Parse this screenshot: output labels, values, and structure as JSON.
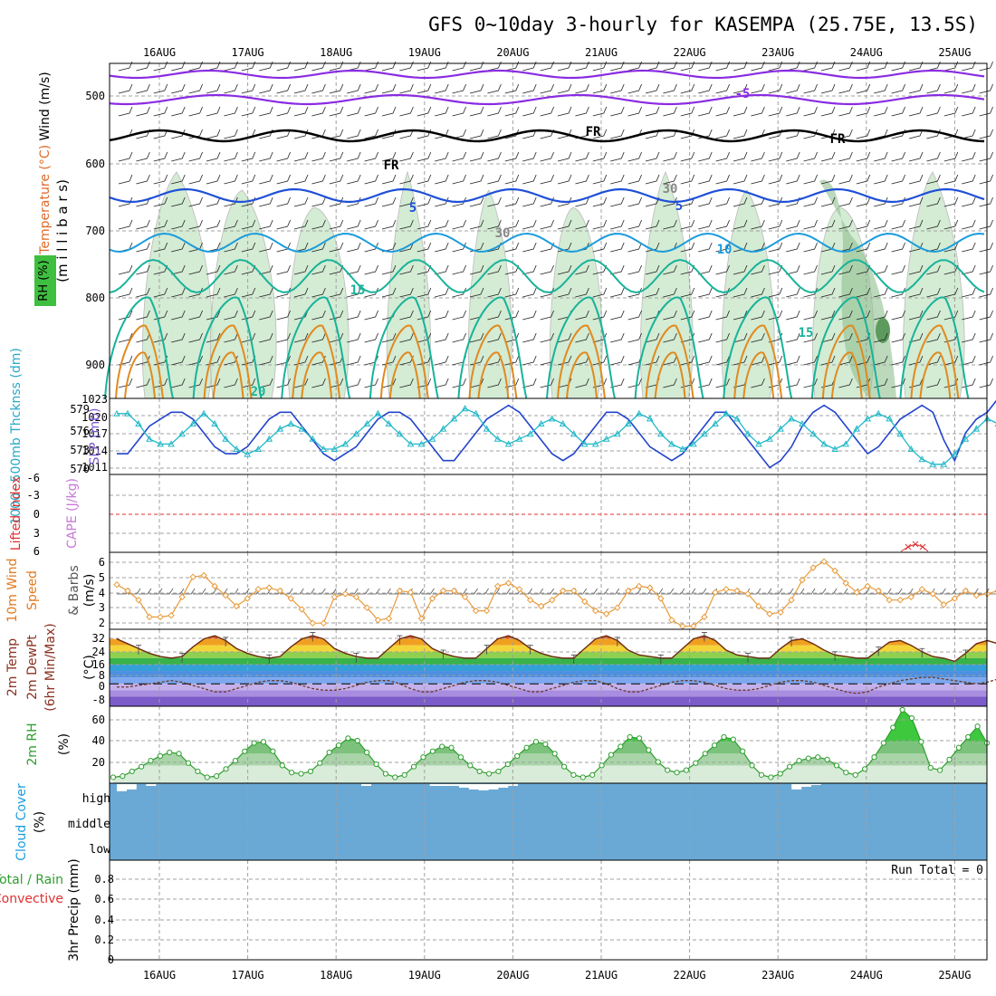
{
  "title": "GFS 0~10day 3-hourly for KASEMPA (25.75E, 13.5S)",
  "date_labels": [
    "16AUG",
    "17AUG",
    "18AUG",
    "19AUG",
    "20AUG",
    "21AUG",
    "22AUG",
    "23AUG",
    "24AUG",
    "25AUG"
  ],
  "panels": {
    "upper_air": {
      "ylabel": "(millibars)",
      "ylabel_chars": "(m i l l i b a r s)",
      "side_wind": "Wind (m/s)",
      "side_temp": "Temperature (°C)",
      "side_rh": "RH (%)",
      "pressure_ticks": [
        "500",
        "600",
        "700",
        "800",
        "900"
      ],
      "contour_labels": [
        "-5",
        "FR",
        "FR",
        "FR",
        "5",
        "5",
        "10",
        "15",
        "15",
        "20",
        "30",
        "30"
      ]
    },
    "thickness_slp": {
      "ylabel_left": "1000~500mb Thcknss (dm)",
      "ylabel_right": "SLP (mb)",
      "left_ticks": [
        "579",
        "576",
        "573",
        "570"
      ],
      "right_ticks": [
        "1023",
        "1020",
        "1017",
        "1014",
        "1011"
      ]
    },
    "stability": {
      "ylabel_left": "Lifted Index",
      "ylabel_right": "CAPE (J/kg)",
      "ticks": [
        "-6",
        "-3",
        "0",
        "3",
        "6"
      ]
    },
    "wind10m": {
      "ylabel_1": "10m Wind",
      "ylabel_2": "Speed",
      "ylabel_3": "& Barbs",
      "ylabel_units": "(m/s)",
      "ticks": [
        "6",
        "5",
        "4",
        "3",
        "2"
      ]
    },
    "temp2m": {
      "ylabel_1": "2m Temp",
      "ylabel_2": "2m DewPt",
      "ylabel_3": "(6hr Min/Max)",
      "ylabel_units": "(°C)",
      "ticks": [
        "32",
        "24",
        "16",
        "8",
        "0",
        "-8"
      ]
    },
    "rh2m": {
      "ylabel": "2m RH",
      "units": "(%)",
      "ticks": [
        "60",
        "40",
        "20"
      ]
    },
    "cloud": {
      "ylabel": "Cloud Cover",
      "units": "(%)",
      "levels": [
        "high",
        "middle",
        "low"
      ]
    },
    "precip": {
      "ylabel_1": "Total / Rain",
      "ylabel_2": "Convective",
      "ylabel_3": "3hr Precip (mm)",
      "run_total": "Run Total = 0",
      "ticks": [
        "0.8",
        "0.6",
        "0.4",
        "0.2",
        "0"
      ]
    }
  },
  "colors": {
    "frame": "#000000",
    "grid": "#a0a0a0",
    "rh_fill": "#cde8cd",
    "rh_dark": "#8fbf8f",
    "temp_cold": "#8a2be2",
    "temp_mid": "#1e4fd8",
    "temp_cyan": "#1a9bdc",
    "temp_teal": "#17b39a",
    "temp_warm": "#e08a1e",
    "thickness": "#2244cc",
    "slp": "#22b8c8",
    "wind_speed": "#e89a3a",
    "rh2m_line": "#2e9e2e",
    "cloud_bg": "#6aa9d6",
    "cloud_white": "#ffffff"
  },
  "chart_data": [
    {
      "type": "line",
      "name": "1000-500mb thickness (dm)",
      "ylim": [
        569,
        580
      ],
      "values": [
        572,
        572,
        574,
        576,
        577,
        578,
        578,
        577,
        575,
        573,
        572,
        572,
        573,
        575,
        577,
        578,
        578,
        576,
        574,
        572,
        571,
        572,
        573,
        575,
        577,
        578,
        578,
        577,
        575,
        573,
        571,
        571,
        573,
        575,
        577,
        578,
        579,
        578,
        576,
        574,
        572,
        571,
        572,
        574,
        576,
        578,
        578,
        577,
        575,
        573,
        572,
        571,
        572,
        574,
        576,
        578,
        578,
        576,
        574,
        572,
        570,
        571,
        573,
        576,
        578,
        579,
        578,
        576,
        574,
        572,
        573,
        575,
        577,
        578,
        579,
        578,
        574,
        571,
        575,
        577,
        578,
        580,
        579,
        577,
        575,
        576,
        578,
        579
      ]
    },
    {
      "type": "line",
      "name": "SLP (mb)",
      "ylim": [
        1009,
        1024
      ],
      "values": [
        1021,
        1021,
        1019,
        1016,
        1015,
        1015,
        1017,
        1019,
        1021,
        1019,
        1016,
        1014,
        1013,
        1014,
        1016,
        1018,
        1019,
        1018,
        1016,
        1014,
        1014,
        1015,
        1017,
        1019,
        1021,
        1019,
        1017,
        1015,
        1015,
        1016,
        1018,
        1020,
        1022,
        1021,
        1018,
        1016,
        1015,
        1016,
        1017,
        1019,
        1020,
        1019,
        1017,
        1015,
        1015,
        1016,
        1017,
        1019,
        1021,
        1020,
        1017,
        1015,
        1014,
        1015,
        1017,
        1019,
        1021,
        1020,
        1017,
        1015,
        1016,
        1018,
        1020,
        1019,
        1017,
        1015,
        1014,
        1015,
        1018,
        1020,
        1021,
        1020,
        1017,
        1014,
        1012,
        1011,
        1011,
        1013,
        1016,
        1018,
        1020,
        1019,
        1016,
        1013,
        1011,
        1012,
        1014,
        1016
      ]
    },
    {
      "type": "line",
      "name": "Lifted Index",
      "ylim": [
        -6,
        6
      ],
      "values": [
        6.5,
        6.5,
        6.5,
        6.5,
        6.5,
        6.5,
        6.5,
        6.5,
        6.5,
        6.5,
        6.5,
        6.5,
        6.5,
        6.5,
        6.5,
        6.5,
        6.5,
        6.5,
        6.5,
        6.5,
        6.5,
        6.5,
        6.5,
        6.5,
        6.5,
        6.5,
        6.5,
        6.5,
        6.5,
        6.5,
        6.5,
        6.5,
        6.5,
        6.5,
        6.5,
        6.5,
        6.5,
        6.5,
        6.5,
        6.5,
        6.5,
        6.5,
        6.5,
        6.5,
        6.5,
        6.5,
        6.5,
        6.5,
        6.5,
        6.5,
        6.5,
        6.5,
        6.5,
        6.5,
        6.5,
        6.5,
        6.5,
        6.5,
        6.5,
        6.5,
        6.5,
        6.5,
        6.5,
        6.5,
        6.5,
        6.5,
        6.5,
        6.5,
        6.5,
        6.5,
        6.5,
        6.5,
        6.5,
        6.5,
        6.5,
        6.5,
        6.5,
        6.5,
        6.5,
        6.5,
        6.5,
        6.5,
        6.5,
        6.5,
        6.5,
        6.5,
        6.5,
        6.5
      ]
    },
    {
      "type": "line",
      "name": "10m wind speed (m/s)",
      "ylim": [
        1.8,
        6.8
      ],
      "values": [
        4.7,
        4.3,
        3.7,
        2.6,
        2.6,
        2.7,
        3.9,
        5.2,
        5.3,
        4.6,
        4.0,
        3.3,
        3.8,
        4.4,
        4.5,
        4.3,
        3.8,
        3.1,
        2.2,
        2.2,
        3.9,
        4.1,
        3.9,
        3.2,
        2.4,
        2.5,
        4.3,
        4.2,
        2.5,
        3.8,
        4.3,
        4.3,
        3.9,
        3.0,
        3.0,
        4.6,
        4.8,
        4.4,
        3.7,
        3.3,
        3.7,
        4.3,
        4.3,
        3.6,
        3.0,
        2.8,
        3.2,
        4.3,
        4.6,
        4.5,
        3.8,
        2.4,
        2.0,
        2.0,
        2.6,
        4.2,
        4.4,
        4.3,
        4.1,
        3.3,
        2.8,
        2.9,
        3.7,
        5.0,
        5.8,
        6.2,
        5.6,
        4.8,
        4.2,
        4.6,
        4.3,
        3.7,
        3.7,
        3.9,
        4.4,
        4.1,
        3.4,
        3.8,
        4.3,
        4.0,
        4.1,
        4.3,
        3.6,
        2.8,
        4.3,
        4.1,
        3.8,
        4.1
      ]
    },
    {
      "type": "line",
      "name": "2m temperature (°C)",
      "ylim": [
        -14,
        34
      ],
      "values": [
        28,
        25,
        22,
        19,
        17,
        16,
        17,
        23,
        28,
        30,
        27,
        22,
        19,
        17,
        16,
        17,
        23,
        28,
        30,
        28,
        22,
        19,
        17,
        16,
        16,
        22,
        28,
        30,
        28,
        22,
        19,
        17,
        16,
        16,
        22,
        28,
        30,
        27,
        22,
        19,
        17,
        16,
        16,
        22,
        28,
        30,
        27,
        21,
        18,
        17,
        16,
        16,
        22,
        28,
        30,
        27,
        21,
        18,
        17,
        16,
        16,
        22,
        27,
        28,
        25,
        21,
        18,
        17,
        16,
        16,
        21,
        26,
        27,
        24,
        20,
        17,
        16,
        14,
        19,
        25,
        27,
        25,
        20,
        17,
        15,
        14,
        13,
        16
      ]
    },
    {
      "type": "line",
      "name": "2m dew point (°C)",
      "ylim": [
        -14,
        34
      ],
      "values": [
        -2,
        -2,
        -1,
        0,
        1,
        2,
        1,
        -1,
        -3,
        -5,
        -5,
        -3,
        -1,
        1,
        2,
        2,
        1,
        -1,
        -3,
        -4,
        -4,
        -3,
        -1,
        1,
        2,
        2,
        0,
        -3,
        -5,
        -5,
        -3,
        -1,
        1,
        2,
        2,
        1,
        -1,
        -3,
        -5,
        -5,
        -3,
        -1,
        1,
        2,
        2,
        0,
        -3,
        -5,
        -5,
        -3,
        -1,
        1,
        2,
        2,
        1,
        -1,
        -3,
        -4,
        -4,
        -3,
        -1,
        1,
        2,
        2,
        1,
        -1,
        -3,
        -5,
        -6,
        -5,
        -2,
        0,
        2,
        3,
        4,
        4,
        3,
        2,
        1,
        0,
        1,
        3,
        4,
        4,
        3,
        2,
        1,
        1
      ]
    },
    {
      "type": "area",
      "name": "2m RH (%)",
      "ylim": [
        5,
        70
      ],
      "values": [
        10,
        11,
        15,
        19,
        24,
        28,
        31,
        30,
        22,
        15,
        10,
        11,
        17,
        24,
        32,
        39,
        40,
        32,
        20,
        14,
        13,
        15,
        22,
        31,
        37,
        43,
        41,
        31,
        21,
        13,
        10,
        12,
        19,
        27,
        32,
        36,
        35,
        27,
        20,
        15,
        13,
        15,
        21,
        28,
        35,
        40,
        38,
        30,
        19,
        12,
        10,
        12,
        20,
        29,
        36,
        44,
        43,
        33,
        23,
        16,
        14,
        16,
        22,
        30,
        37,
        44,
        42,
        32,
        20,
        12,
        10,
        13,
        19,
        24,
        26,
        27,
        25,
        20,
        14,
        12,
        17,
        27,
        39,
        52,
        67,
        60,
        40,
        18,
        16,
        25,
        35,
        44,
        53,
        39
      ]
    },
    {
      "type": "bar",
      "name": "High cloud cover (%)",
      "ylim": [
        0,
        100
      ],
      "values": [
        40,
        30,
        0,
        10,
        0,
        0,
        0,
        0,
        0,
        0,
        0,
        0,
        0,
        0,
        0,
        0,
        0,
        0,
        0,
        0,
        0,
        0,
        0,
        0,
        0,
        10,
        0,
        0,
        0,
        0,
        0,
        0,
        10,
        10,
        10,
        20,
        30,
        35,
        30,
        20,
        10,
        0,
        0,
        0,
        0,
        0,
        0,
        0,
        0,
        0,
        0,
        0,
        0,
        0,
        0,
        0,
        0,
        0,
        0,
        0,
        0,
        0,
        0,
        0,
        0,
        0,
        0,
        0,
        0,
        30,
        15,
        5,
        0,
        0,
        0,
        0,
        0,
        0,
        0,
        0,
        0,
        0,
        0,
        0,
        0,
        0,
        0,
        0,
        0,
        0
      ]
    },
    {
      "type": "bar",
      "name": "3hr precipitation (mm)",
      "ylim": [
        0,
        1
      ],
      "values": [
        0,
        0,
        0,
        0,
        0,
        0,
        0,
        0,
        0,
        0,
        0,
        0,
        0,
        0,
        0,
        0,
        0,
        0,
        0,
        0,
        0,
        0,
        0,
        0,
        0,
        0,
        0,
        0,
        0,
        0,
        0,
        0,
        0,
        0,
        0,
        0,
        0,
        0,
        0,
        0,
        0,
        0,
        0,
        0,
        0,
        0,
        0,
        0,
        0,
        0,
        0,
        0,
        0,
        0,
        0,
        0,
        0,
        0,
        0,
        0,
        0,
        0,
        0,
        0,
        0,
        0,
        0,
        0,
        0,
        0,
        0,
        0,
        0,
        0,
        0,
        0,
        0,
        0,
        0,
        0,
        0,
        0,
        0,
        0
      ]
    }
  ]
}
